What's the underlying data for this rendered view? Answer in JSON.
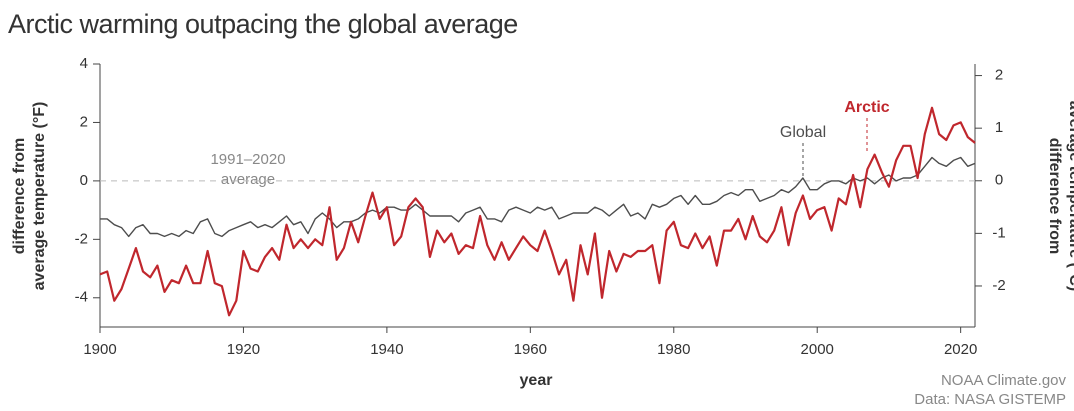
{
  "chart_data": {
    "type": "line",
    "title": "Arctic warming outpacing the global average",
    "x_label": "year",
    "y_label": [
      "difference from",
      "average temperature (°F)"
    ],
    "y2_label": [
      "difference from",
      "average temperature (°C)"
    ],
    "baseline_label": [
      "1991–2020",
      "average"
    ],
    "source": [
      "NOAA Climate.gov",
      "Data: NASA GISTEMP"
    ],
    "xlim": [
      1900,
      2022
    ],
    "xticks": [
      1900,
      1920,
      1940,
      1960,
      1980,
      2000,
      2020
    ],
    "ylim": [
      -5,
      4
    ],
    "yticks": [
      4,
      2,
      0,
      -2,
      -4
    ],
    "y2lim": [
      -2.78,
      2.22
    ],
    "y2ticks": [
      2,
      1,
      0,
      -1,
      -2
    ],
    "x": [
      1900,
      1901,
      1902,
      1903,
      1904,
      1905,
      1906,
      1907,
      1908,
      1909,
      1910,
      1911,
      1912,
      1913,
      1914,
      1915,
      1916,
      1917,
      1918,
      1919,
      1920,
      1921,
      1922,
      1923,
      1924,
      1925,
      1926,
      1927,
      1928,
      1929,
      1930,
      1931,
      1932,
      1933,
      1934,
      1935,
      1936,
      1937,
      1938,
      1939,
      1940,
      1941,
      1942,
      1943,
      1944,
      1945,
      1946,
      1947,
      1948,
      1949,
      1950,
      1951,
      1952,
      1953,
      1954,
      1955,
      1956,
      1957,
      1958,
      1959,
      1960,
      1961,
      1962,
      1963,
      1964,
      1965,
      1966,
      1967,
      1968,
      1969,
      1970,
      1971,
      1972,
      1973,
      1974,
      1975,
      1976,
      1977,
      1978,
      1979,
      1980,
      1981,
      1982,
      1983,
      1984,
      1985,
      1986,
      1987,
      1988,
      1989,
      1990,
      1991,
      1992,
      1993,
      1994,
      1995,
      1996,
      1997,
      1998,
      1999,
      2000,
      2001,
      2002,
      2003,
      2004,
      2005,
      2006,
      2007,
      2008,
      2009,
      2010,
      2011,
      2012,
      2013,
      2014,
      2015,
      2016,
      2017,
      2018,
      2019,
      2020,
      2021,
      2022
    ],
    "series": [
      {
        "name": "Global",
        "color": "#4d4d4d",
        "values": [
          -1.3,
          -1.3,
          -1.5,
          -1.6,
          -1.9,
          -1.6,
          -1.5,
          -1.8,
          -1.8,
          -1.9,
          -1.8,
          -1.9,
          -1.7,
          -1.8,
          -1.4,
          -1.3,
          -1.8,
          -1.9,
          -1.7,
          -1.6,
          -1.5,
          -1.4,
          -1.6,
          -1.5,
          -1.6,
          -1.4,
          -1.2,
          -1.5,
          -1.4,
          -1.8,
          -1.3,
          -1.1,
          -1.3,
          -1.6,
          -1.4,
          -1.4,
          -1.3,
          -1.1,
          -1.0,
          -1.1,
          -0.9,
          -0.9,
          -1.0,
          -1.0,
          -0.8,
          -1.0,
          -1.2,
          -1.2,
          -1.2,
          -1.2,
          -1.4,
          -1.1,
          -1.0,
          -0.9,
          -1.3,
          -1.3,
          -1.4,
          -1.0,
          -0.9,
          -1.0,
          -1.1,
          -0.9,
          -1.0,
          -0.9,
          -1.3,
          -1.2,
          -1.1,
          -1.1,
          -1.1,
          -0.9,
          -1.0,
          -1.2,
          -1.0,
          -0.8,
          -1.2,
          -1.1,
          -1.3,
          -0.8,
          -0.9,
          -0.8,
          -0.6,
          -0.5,
          -0.8,
          -0.5,
          -0.8,
          -0.8,
          -0.7,
          -0.5,
          -0.4,
          -0.5,
          -0.3,
          -0.3,
          -0.7,
          -0.6,
          -0.5,
          -0.3,
          -0.4,
          -0.2,
          0.1,
          -0.3,
          -0.3,
          -0.1,
          0.0,
          0.0,
          -0.1,
          0.1,
          0.0,
          0.1,
          -0.1,
          0.1,
          0.2,
          0.0,
          0.1,
          0.1,
          0.2,
          0.5,
          0.8,
          0.6,
          0.5,
          0.7,
          0.8,
          0.5,
          0.6
        ]
      },
      {
        "name": "Arctic",
        "color": "#c0272d",
        "values": [
          -3.2,
          -3.1,
          -4.1,
          -3.7,
          -3.0,
          -2.3,
          -3.1,
          -3.3,
          -2.9,
          -3.8,
          -3.4,
          -3.5,
          -2.9,
          -3.5,
          -3.5,
          -2.4,
          -3.5,
          -3.6,
          -4.6,
          -4.1,
          -2.4,
          -3.0,
          -3.1,
          -2.6,
          -2.3,
          -2.7,
          -1.5,
          -2.3,
          -2.0,
          -2.3,
          -2.0,
          -2.2,
          -0.9,
          -2.7,
          -2.3,
          -1.4,
          -2.1,
          -1.2,
          -0.4,
          -1.3,
          -0.9,
          -2.2,
          -1.9,
          -0.9,
          -0.6,
          -0.9,
          -2.6,
          -1.7,
          -2.1,
          -1.8,
          -2.5,
          -2.2,
          -2.3,
          -1.2,
          -2.2,
          -2.7,
          -2.1,
          -2.7,
          -2.3,
          -1.9,
          -2.2,
          -2.4,
          -1.7,
          -2.4,
          -3.2,
          -2.7,
          -4.1,
          -2.2,
          -3.2,
          -1.8,
          -4.0,
          -2.4,
          -3.1,
          -2.5,
          -2.6,
          -2.4,
          -2.4,
          -2.2,
          -3.5,
          -1.7,
          -1.4,
          -2.2,
          -2.3,
          -1.8,
          -2.3,
          -1.9,
          -2.9,
          -1.7,
          -1.7,
          -1.3,
          -2.0,
          -1.2,
          -1.9,
          -2.1,
          -1.7,
          -0.9,
          -2.2,
          -1.1,
          -0.5,
          -1.3,
          -1.0,
          -0.9,
          -1.7,
          -0.6,
          -0.8,
          0.2,
          -0.9,
          0.4,
          0.9,
          0.3,
          -0.2,
          0.7,
          1.2,
          1.2,
          0.1,
          1.6,
          2.5,
          1.6,
          1.4,
          1.9,
          2.0,
          1.5,
          1.3
        ]
      }
    ]
  }
}
